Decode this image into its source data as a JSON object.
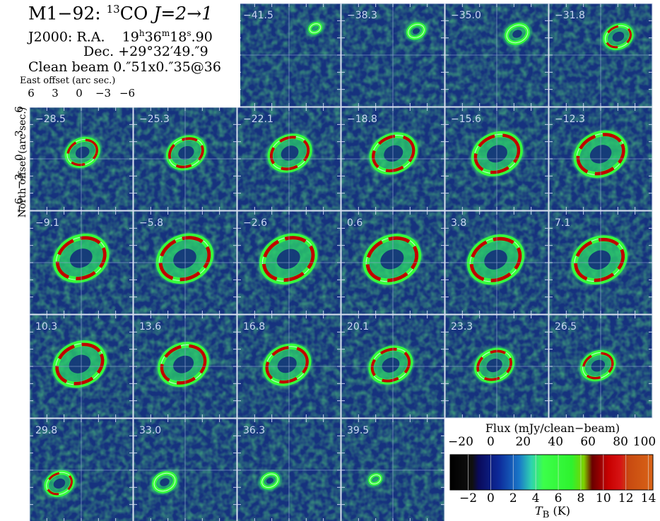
{
  "title": {
    "object": "M1−92:",
    "isotope_sup": "13",
    "molecule": "CO",
    "transition": "J=2→1"
  },
  "coordinates": {
    "ra_label": "J2000:  R.A.",
    "ra_h": "19",
    "ra_h_unit": "h",
    "ra_m": "36",
    "ra_m_unit": "m",
    "ra_s": "18",
    "ra_s_unit": "s",
    "ra_frac": ".90",
    "dec_label": "Dec.",
    "dec_value": "+29°32′49.″9",
    "beam_label": "Clean beam",
    "beam_value": "0.″51x0.″35@36"
  },
  "axes": {
    "xlabel": "East offset (arc sec.)",
    "ylabel": "North offset (arc sec.)",
    "x_ticks": [
      "6",
      "3",
      "0",
      "−3",
      "−6"
    ],
    "y_ticks": [
      "6",
      "3",
      "0",
      "−3",
      "−6"
    ]
  },
  "chart_data": {
    "type": "heatmap",
    "description_units": "velocity channel maps",
    "channels": [
      "−41.5",
      "−38.3",
      "−35.0",
      "−31.8",
      "−28.5",
      "−25.3",
      "−22.1",
      "−18.8",
      "−15.6",
      "−12.3",
      "−9.1",
      "−5.8",
      "−2.6",
      "0.6",
      "3.8",
      "7.1",
      "10.3",
      "13.6",
      "16.8",
      "20.1",
      "23.3",
      "26.5",
      "29.8",
      "33.0",
      "36.3",
      "39.5"
    ],
    "xlim": [
      8.5,
      -8.5
    ],
    "ylim": [
      -8.5,
      8.5
    ],
    "colorbar": {
      "flux_label": "Flux (mJy/clean−beam)",
      "flux_ticks": [
        "−20",
        "0",
        "20",
        "40",
        "60",
        "80",
        "100"
      ],
      "flux_values": [
        -20,
        0,
        20,
        40,
        60,
        80,
        100
      ],
      "tb_label_main": "T",
      "tb_label_sub": "B",
      "tb_label_unit": " (K)",
      "tb_ticks": [
        "−2",
        "0",
        "2",
        "4",
        "6",
        "8",
        "10",
        "12",
        "14"
      ],
      "tb_values": [
        -2,
        0,
        2,
        4,
        6,
        8,
        10,
        12,
        14
      ]
    }
  }
}
